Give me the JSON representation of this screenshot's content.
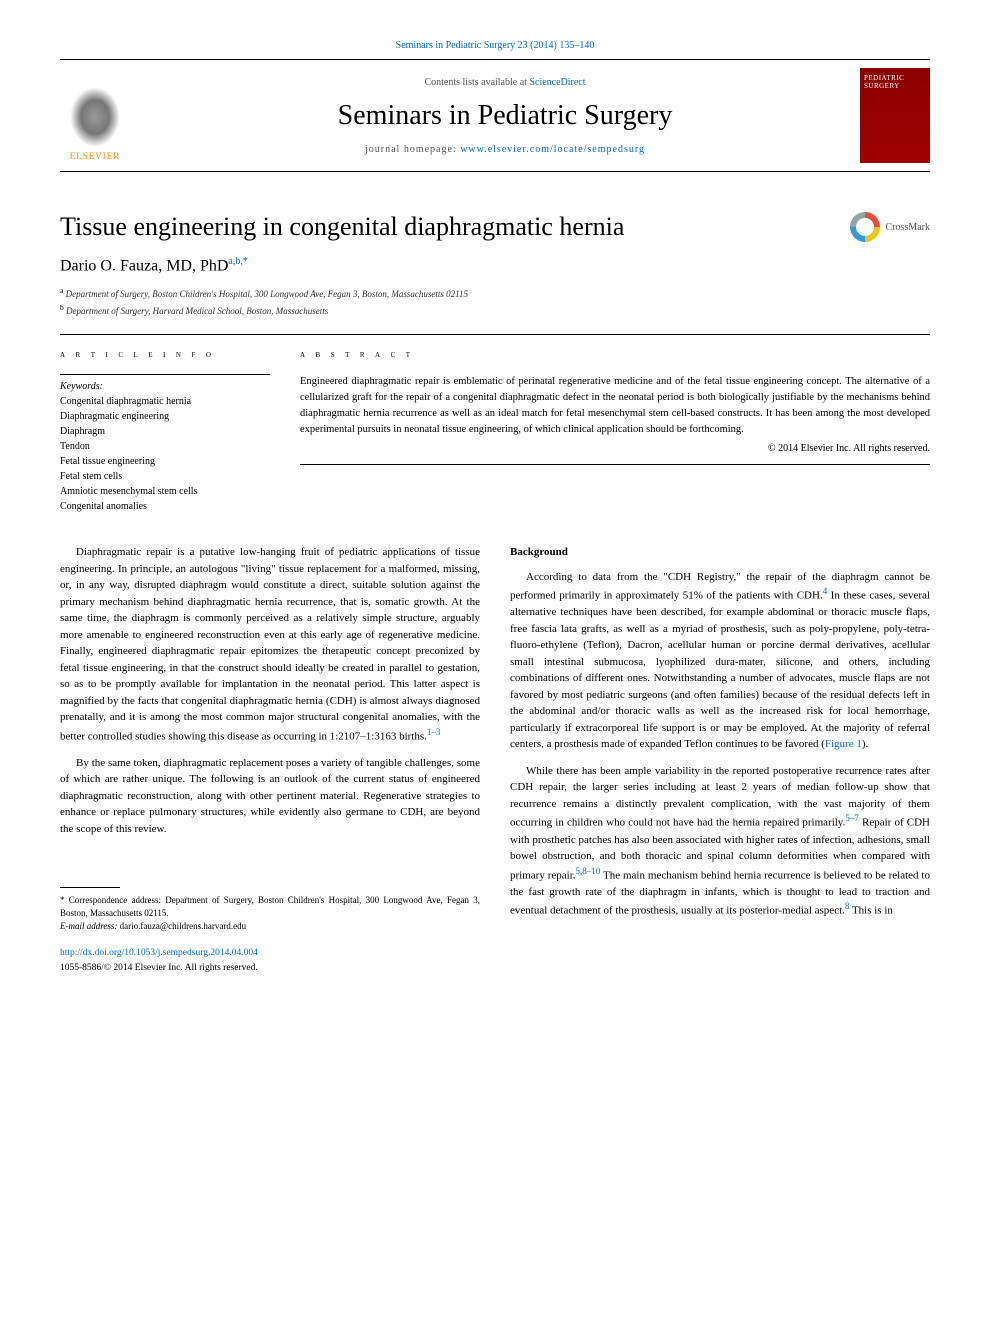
{
  "citation": "Seminars in Pediatric Surgery 23 (2014) 135–140",
  "header": {
    "contents_prefix": "Contents lists available at ",
    "contents_link": "ScienceDirect",
    "journal_name": "Seminars in Pediatric Surgery",
    "homepage_prefix": "journal homepage: ",
    "homepage_url": "www.elsevier.com/locate/sempedsurg",
    "publisher": "ELSEVIER",
    "cover_title": "PEDIATRIC SURGERY"
  },
  "article": {
    "title": "Tissue engineering in congenital diaphragmatic hernia",
    "author_name": "Dario O. Fauza, MD, PhD",
    "author_marks": "a,b,",
    "author_star": "*",
    "crossmark": "CrossMark",
    "affiliations": [
      {
        "mark": "a",
        "text": " Department of Surgery, Boston Children's Hospital, 300 Longwood Ave, Fegan 3, Boston, Massachusetts 02115"
      },
      {
        "mark": "b",
        "text": " Department of Surgery, Harvard Medical School, Boston, Massachusetts"
      }
    ]
  },
  "info": {
    "heading": "a r t i c l e  i n f o",
    "keywords_label": "Keywords:",
    "keywords": [
      "Congenital diaphragmatic hernia",
      "Diaphragmatic engineering",
      "Diaphragm",
      "Tendon",
      "Fetal tissue engineering",
      "Fetal stem cells",
      "Amniotic mesenchymal stem cells",
      "Congenital anomalies"
    ]
  },
  "abstract": {
    "heading": "a b s t r a c t",
    "text": "Engineered diaphragmatic repair is emblematic of perinatal regenerative medicine and of the fetal tissue engineering concept. The alternative of a cellularized graft for the repair of a congenital diaphragmatic defect in the neonatal period is both biologically justifiable by the mechanisms behind diaphragmatic hernia recurrence as well as an ideal match for fetal mesenchymal stem cell-based constructs. It has been among the most developed experimental pursuits in neonatal tissue engineering, of which clinical application should be forthcoming.",
    "copyright": "© 2014 Elsevier Inc. All rights reserved."
  },
  "body": {
    "left": {
      "p1": "Diaphragmatic repair is a putative low-hanging fruit of pediatric applications of tissue engineering. In principle, an autologous \"living\" tissue replacement for a malformed, missing, or, in any way, disrupted diaphragm would constitute a direct, suitable solution against the primary mechanism behind diaphragmatic hernia recurrence, that is, somatic growth. At the same time, the diaphragm is commonly perceived as a relatively simple structure, arguably more amenable to engineered reconstruction even at this early age of regenerative medicine. Finally, engineered diaphragmatic repair epitomizes the therapeutic concept preconized by fetal tissue engineering, in that the construct should ideally be created in parallel to gestation, so as to be promptly available for implantation in the neonatal period. This latter aspect is magnified by the facts that congenital diaphragmatic hernia (CDH) is almost always diagnosed prenatally, and it is among the most common major structural congenital anomalies, with the better controlled studies showing this disease as occurring in 1:2107–1:3163 births.",
      "p1_cite": "1–3",
      "p2": "By the same token, diaphragmatic replacement poses a variety of tangible challenges, some of which are rather unique. The following is an outlook of the current status of engineered diaphragmatic reconstruction, along with other pertinent material. Regenerative strategies to enhance or replace pulmonary structures, while evidently also germane to CDH, are beyond the scope of this review."
    },
    "right": {
      "heading": "Background",
      "p1a": "According to data from the \"CDH Registry,\" the repair of the diaphragm cannot be performed primarily in approximately 51% of the patients with CDH.",
      "p1_cite1": "4",
      "p1b": " In these cases, several alternative techniques have been described, for example abdominal or thoracic muscle flaps, free fascia lata grafts, as well as a myriad of prosthesis, such as poly-propylene, poly-tetra-fluoro-ethylene (Teflon), Dacron, acellular human or porcine dermal derivatives, acellular small intestinal submucosa, lyophilized dura-mater, silicone, and others, including combinations of different ones. Notwithstanding a number of advocates, muscle flaps are not favored by most pediatric surgeons (and often families) because of the residual defects left in the abdominal and/or thoracic walls as well as the increased risk for local hemorrhage, particularly if extracorporeal life support is or may be employed. At the majority of referral centers, a prosthesis made of expanded Teflon continues to be favored (",
      "p1_fig": "Figure 1",
      "p1c": ").",
      "p2a": "While there has been ample variability in the reported postoperative recurrence rates after CDH repair, the larger series including at least 2 years of median follow-up show that recurrence remains a distinctly prevalent complication, with the vast majority of them occurring in children who could not have had the hernia repaired primarily.",
      "p2_cite1": "5–7",
      "p2b": " Repair of CDH with prosthetic patches has also been associated with higher rates of infection, adhesions, small bowel obstruction, and both thoracic and spinal column deformities when compared with primary repair.",
      "p2_cite2": "5,8–10",
      "p2c": " The main mechanism behind hernia recurrence is believed to be related to the fast growth rate of the diaphragm in infants, which is thought to lead to traction and eventual detachment of the prosthesis, usually at its posterior-medial aspect.",
      "p2_cite3": "8",
      "p2d": " This is in"
    }
  },
  "footnotes": {
    "corr_label": "* Correspondence address: Department of Surgery, Boston Children's Hospital, 300 Longwood Ave, Fegan 3, Boston, Massachusetts 02115.",
    "email_label": "E-mail address:",
    "email": " dario.fauza@childrens.harvard.edu",
    "doi": "http://dx.doi.org/10.1053/j.sempedsurg.2014.04.004",
    "issn": "1055-8586/© 2014 Elsevier Inc. All rights reserved."
  },
  "colors": {
    "link": "#0066cc",
    "publisher": "#ff8800",
    "cover_bg": "#8b0000"
  }
}
